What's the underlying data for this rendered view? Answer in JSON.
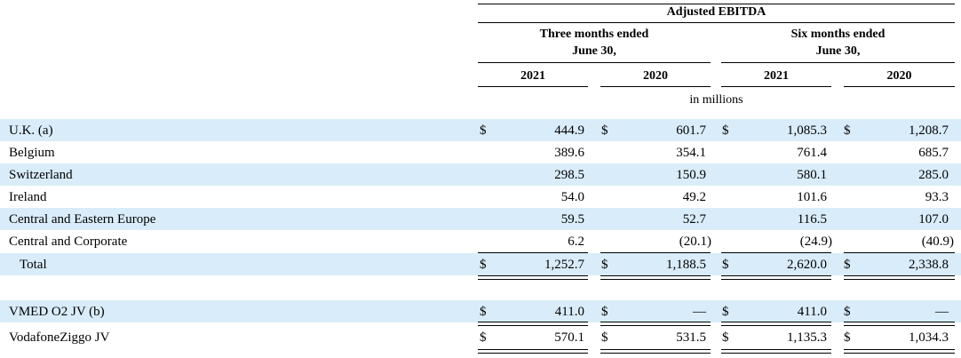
{
  "header": {
    "title": "Adjusted EBITDA",
    "three_months_line1": "Three months ended",
    "three_months_line2": "June 30,",
    "six_months_line1": "Six months ended",
    "six_months_line2": "June 30,",
    "years": [
      "2021",
      "2020",
      "2021",
      "2020"
    ],
    "units": "in millions"
  },
  "currency_symbol": "$",
  "rows": [
    {
      "label": "U.K. (a)",
      "values": [
        "444.9",
        "601.7",
        "1,085.3",
        "1,208.7"
      ]
    },
    {
      "label": "Belgium",
      "values": [
        "389.6",
        "354.1",
        "761.4",
        "685.7"
      ]
    },
    {
      "label": "Switzerland",
      "values": [
        "298.5",
        "150.9",
        "580.1",
        "285.0"
      ]
    },
    {
      "label": "Ireland",
      "values": [
        "54.0",
        "49.2",
        "101.6",
        "93.3"
      ]
    },
    {
      "label": "Central and Eastern Europe",
      "values": [
        "59.5",
        "52.7",
        "116.5",
        "107.0"
      ]
    },
    {
      "label": "Central and Corporate",
      "values": [
        "6.2",
        "(20.1)",
        "(24.9)",
        "(40.9)"
      ]
    },
    {
      "label": "Total",
      "values": [
        "1,252.7",
        "1,188.5",
        "2,620.0",
        "2,338.8"
      ]
    },
    {
      "label": "VMED O2 JV (b)",
      "values": [
        "411.0",
        "—",
        "411.0",
        "—"
      ]
    },
    {
      "label": "VodafoneZiggo JV",
      "values": [
        "570.1",
        "531.5",
        "1,135.3",
        "1,034.3"
      ]
    }
  ]
}
